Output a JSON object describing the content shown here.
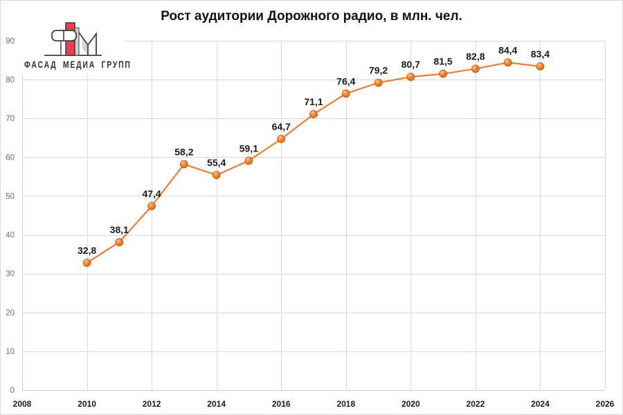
{
  "title": "Рост аудитории Дорожного радио, в млн. чел.",
  "logo": {
    "text": "ФАСАД МЕДИА ГРУПП",
    "red": "#e8404f",
    "gray_fill": "#cfcfcf",
    "outline": "#3f3f3f"
  },
  "chart_data": {
    "type": "line",
    "title": "Рост аудитории Дорожного радио, в млн. чел.",
    "x": [
      2010,
      2011,
      2012,
      2013,
      2014,
      2015,
      2016,
      2017,
      2018,
      2019,
      2020,
      2021,
      2022,
      2023,
      2024
    ],
    "values": [
      32.8,
      38.1,
      47.4,
      58.2,
      55.4,
      59.1,
      64.7,
      71.1,
      76.4,
      79.2,
      80.7,
      81.5,
      82.8,
      84.4,
      83.4
    ],
    "point_labels": [
      "32,8",
      "38,1",
      "47,4",
      "58,2",
      "55,4",
      "59,1",
      "64,7",
      "71,1",
      "76,4",
      "79,2",
      "80,7",
      "81,5",
      "82,8",
      "84,4",
      "83,4"
    ],
    "xlabel": "",
    "ylabel": "",
    "xlim": [
      2008,
      2026
    ],
    "ylim": [
      0,
      90
    ],
    "x_ticks": [
      2008,
      2010,
      2012,
      2014,
      2016,
      2018,
      2020,
      2022,
      2024,
      2026
    ],
    "y_ticks": [
      0,
      10,
      20,
      30,
      40,
      50,
      60,
      70,
      80,
      90
    ],
    "grid": true,
    "legend": "none",
    "marker": "circle",
    "colors": {
      "line": "#ED7D31",
      "marker_stroke": "#BC5B12",
      "marker_highlight": "#FFCE9A",
      "marker_mid": "#EF8435",
      "marker_dark": "#D96A12",
      "grid": "#D9D9D9",
      "axis_line": "#D0D0D0",
      "y_tick_text": "#6f6f6f",
      "x_tick_text": "#1a1a1a",
      "point_label_text": "#1a1a1a"
    }
  }
}
